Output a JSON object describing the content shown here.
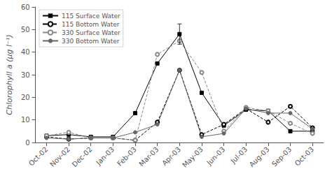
{
  "chart_data": {
    "type": "line",
    "ylabel": "Chlorophyll a (µg l⁻¹)",
    "categories": [
      "Oct-02",
      "Nov-02",
      "Dec-02",
      "Jan-03",
      "Feb-03",
      "Mar-03",
      "Apr-03",
      "May-03",
      "Jun-03",
      "Jul-03",
      "Aug-03",
      "Sep-03",
      "Oct-03"
    ],
    "series": [
      {
        "name": "115 Surface Water",
        "color": "#000000",
        "marker": "square",
        "line_style": "solid",
        "values": [
          3.0,
          3.5,
          2.5,
          2.5,
          13.0,
          35.0,
          48.0,
          22.0,
          7.5,
          14.5,
          14.0,
          5.0,
          5.0
        ],
        "yerr": [
          null,
          null,
          null,
          null,
          null,
          null,
          4.5,
          null,
          null,
          null,
          null,
          null,
          null
        ]
      },
      {
        "name": "115 Bottom Water",
        "color": "#000000",
        "marker": "circle_open",
        "line_style": "dashed",
        "values": [
          2.5,
          1.5,
          2.0,
          2.0,
          1.0,
          9.0,
          32.0,
          3.5,
          8.0,
          15.0,
          9.0,
          16.0,
          6.5
        ]
      },
      {
        "name": "330 Surface Water",
        "color": "#888888",
        "marker": "circle_open",
        "line_style": "dashed",
        "values": [
          3.0,
          4.5,
          2.0,
          2.0,
          1.0,
          39.0,
          45.0,
          31.0,
          5.0,
          15.5,
          14.0,
          8.5,
          4.0
        ]
      },
      {
        "name": "330 Bottom Water",
        "color": "#666666",
        "marker": "circle",
        "line_style": "solid",
        "values": [
          2.0,
          1.5,
          2.0,
          2.0,
          4.5,
          8.0,
          32.0,
          2.5,
          4.0,
          15.0,
          13.0,
          13.0,
          6.0
        ]
      }
    ],
    "ylim": [
      0,
      60
    ],
    "yticks": [
      0,
      10,
      20,
      30,
      40,
      50,
      60
    ],
    "grid": false,
    "legend": "upper left"
  }
}
